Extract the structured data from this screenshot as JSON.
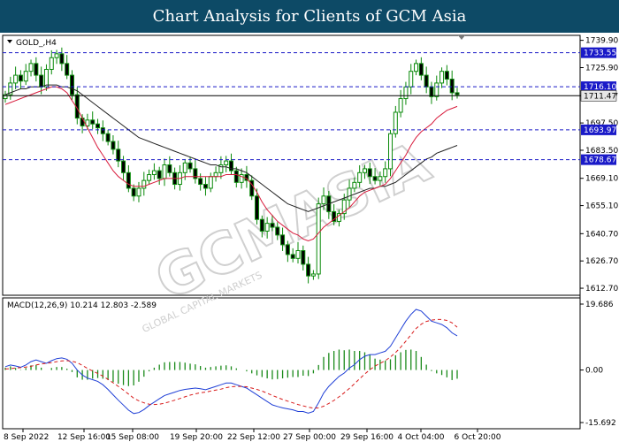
{
  "header": {
    "title": "Chart Analysis for Clients of GCM Asia"
  },
  "watermark": {
    "text": "GCMASIA",
    "tagline": "GLOBAL CAPITAL MARKETS"
  },
  "colors": {
    "price_bars": "#0a8a0a",
    "ma_fast": "#d81b3c",
    "ma_slow": "#222222",
    "level_lines": "#1a1ac8",
    "level_label_bg": "#1a1ac8",
    "current_price_bg": "#e6e6e6",
    "macd_line": "#1f3fd6",
    "signal_line": "#d81b1b",
    "histogram": "#1a8a1a"
  },
  "chart_data": [
    {
      "type": "candlestick",
      "symbol_label": "GOLD_,H4",
      "ylim": [
        1610,
        1742
      ],
      "y_ticks": [
        "1739.90",
        "1725.90",
        "1711.47",
        "1697.50",
        "1683.50",
        "1669.10",
        "1655.10",
        "1640.70",
        "1626.70",
        "1612.70"
      ],
      "x_ticks": [
        "8 Sep 2022",
        "12 Sep 16:00",
        "15 Sep 08:00",
        "19 Sep 20:00",
        "22 Sep 12:00",
        "27 Sep 00:00",
        "29 Sep 16:00",
        "4 Oct 04:00",
        "6 Oct 20:00"
      ],
      "levels": [
        {
          "value": 1733.55,
          "label": "1733.55"
        },
        {
          "value": 1716.1,
          "label": "1716.10"
        },
        {
          "value": 1693.97,
          "label": "1693.97"
        },
        {
          "value": 1678.67,
          "label": "1678.67"
        }
      ],
      "current_price": {
        "value": 1711.47,
        "label": "1711.47"
      },
      "close": [
        1712,
        1718,
        1722,
        1719,
        1724,
        1728,
        1722,
        1716,
        1725,
        1731,
        1733,
        1728,
        1722,
        1712,
        1700,
        1696,
        1699,
        1697,
        1695,
        1692,
        1688,
        1684,
        1678,
        1672,
        1664,
        1660,
        1664,
        1668,
        1671,
        1673,
        1669,
        1676,
        1672,
        1666,
        1672,
        1677,
        1674,
        1669,
        1666,
        1664,
        1670,
        1672,
        1676,
        1678,
        1673,
        1667,
        1671,
        1668,
        1660,
        1648,
        1642,
        1646,
        1644,
        1640,
        1635,
        1630,
        1628,
        1632,
        1625,
        1619,
        1620,
        1656,
        1660,
        1652,
        1647,
        1651,
        1658,
        1664,
        1667,
        1672,
        1674,
        1670,
        1668,
        1670,
        1674,
        1692,
        1703,
        1710,
        1716,
        1724,
        1728,
        1722,
        1716,
        1711,
        1718,
        1724,
        1720,
        1713,
        1712
      ],
      "ma_fast": [
        1707,
        1708,
        1709,
        1710,
        1711,
        1712,
        1713,
        1714,
        1715,
        1716,
        1716,
        1715,
        1713,
        1709,
        1705,
        1700,
        1695,
        1690,
        1685,
        1681,
        1677,
        1673,
        1670,
        1668,
        1666,
        1665,
        1665,
        1665,
        1666,
        1667,
        1668,
        1669,
        1669,
        1669,
        1669,
        1670,
        1670,
        1670,
        1670,
        1670,
        1670,
        1670,
        1670,
        1671,
        1671,
        1671,
        1670,
        1669,
        1666,
        1662,
        1657,
        1653,
        1650,
        1647,
        1645,
        1643,
        1641,
        1640,
        1638,
        1637,
        1638,
        1641,
        1644,
        1646,
        1648,
        1650,
        1652,
        1654,
        1657,
        1660,
        1662,
        1663,
        1664,
        1665,
        1666,
        1669,
        1673,
        1677,
        1681,
        1686,
        1690,
        1693,
        1695,
        1697,
        1700,
        1702,
        1704,
        1705,
        1706
      ],
      "ma_slow": [
        1712,
        1713,
        1714,
        1715,
        1715,
        1716,
        1716,
        1716,
        1717,
        1717,
        1717,
        1716,
        1716,
        1715,
        1714,
        1712,
        1710,
        1708,
        1706,
        1704,
        1702,
        1700,
        1698,
        1696,
        1694,
        1692,
        1690,
        1689,
        1688,
        1687,
        1686,
        1685,
        1684,
        1683,
        1682,
        1681,
        1680,
        1679,
        1678,
        1677,
        1676,
        1676,
        1675,
        1675,
        1674,
        1674,
        1673,
        1672,
        1670,
        1668,
        1666,
        1664,
        1662,
        1660,
        1658,
        1656,
        1655,
        1654,
        1653,
        1652,
        1653,
        1654,
        1655,
        1656,
        1657,
        1658,
        1659,
        1660,
        1661,
        1662,
        1663,
        1664,
        1664,
        1665,
        1665,
        1666,
        1667,
        1669,
        1671,
        1673,
        1675,
        1677,
        1679,
        1680,
        1682,
        1683,
        1684,
        1685,
        1686
      ]
    },
    {
      "type": "macd",
      "label": "MACD(12,26,9) 10.214 12.803 -2.589",
      "params": "12,26,9",
      "values": {
        "macd": 10.214,
        "signal": 12.803,
        "histogram": -2.589
      },
      "ylim": [
        -15.692,
        19.686
      ],
      "y_ticks": [
        "19.686",
        "0.00",
        "-15.692"
      ],
      "macd": [
        1,
        1.5,
        1.2,
        0.8,
        1.5,
        2.5,
        3,
        2.5,
        2,
        2.8,
        3.4,
        3.6,
        3.2,
        2,
        0,
        -1.5,
        -2.4,
        -2.9,
        -3.4,
        -4.4,
        -5.8,
        -7.4,
        -9,
        -10.5,
        -12,
        -13,
        -12.7,
        -11.8,
        -10.6,
        -9.6,
        -8.6,
        -7.6,
        -7.1,
        -6.6,
        -6.1,
        -5.8,
        -5.6,
        -5.4,
        -5.6,
        -5.9,
        -5.4,
        -4.9,
        -4.4,
        -3.9,
        -3.9,
        -4.4,
        -4.9,
        -5.4,
        -6.4,
        -7.4,
        -8.4,
        -9.4,
        -10.4,
        -10.9,
        -11.3,
        -11.6,
        -11.9,
        -12.4,
        -12.4,
        -12.9,
        -12.4,
        -9.8,
        -6.9,
        -4.9,
        -3.4,
        -1.9,
        -0.9,
        0.6,
        1.6,
        3.1,
        4.1,
        4.6,
        4.6,
        5.1,
        5.6,
        7.1,
        9.6,
        12.1,
        14.6,
        16.6,
        18.1,
        17.6,
        16.1,
        14.6,
        14.1,
        13.6,
        12.6,
        11.1,
        10.2
      ],
      "signal": [
        0.3,
        0.4,
        0.6,
        0.7,
        0.9,
        1.1,
        1.5,
        1.8,
        2,
        2.2,
        2.5,
        2.7,
        2.8,
        2.6,
        2.2,
        1.4,
        0.5,
        -0.3,
        -1,
        -1.8,
        -2.8,
        -3.8,
        -4.9,
        -6,
        -7.2,
        -8.4,
        -9.2,
        -9.8,
        -10.2,
        -10.3,
        -10.2,
        -9.9,
        -9.5,
        -9,
        -8.5,
        -8,
        -7.5,
        -7.1,
        -6.8,
        -6.6,
        -6.3,
        -6,
        -5.7,
        -5.3,
        -5,
        -4.9,
        -4.9,
        -5,
        -5.4,
        -5.8,
        -6.3,
        -6.9,
        -7.6,
        -8.2,
        -8.8,
        -9.3,
        -9.8,
        -10.3,
        -10.7,
        -11.1,
        -11.4,
        -11.3,
        -10.8,
        -10,
        -9.1,
        -8,
        -6.8,
        -5.5,
        -4.1,
        -2.6,
        -1.2,
        0.1,
        1.2,
        2,
        2.8,
        3.9,
        5.2,
        6.8,
        8.6,
        10.5,
        12.4,
        13.7,
        14.5,
        14.9,
        15.1,
        15.1,
        14.8,
        14.1,
        12.8
      ]
    }
  ]
}
